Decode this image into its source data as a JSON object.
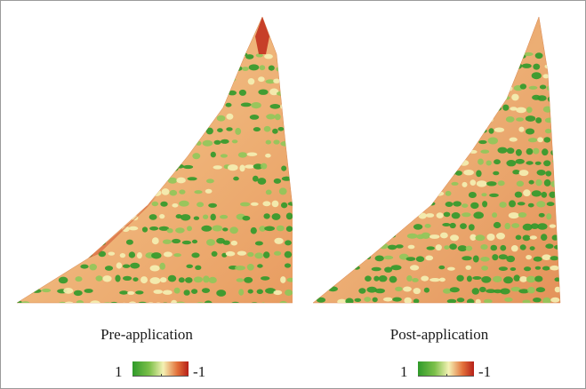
{
  "panels": [
    {
      "label": "Pre-application",
      "legend": {
        "high_label": "1",
        "low_label": "-1"
      }
    },
    {
      "label": "Post-application",
      "legend": {
        "high_label": "1",
        "low_label": "-1"
      }
    }
  ],
  "colors": {
    "healthy": "#2f9a2a",
    "neutral": "#f4f1b4",
    "stressed": "#e3713a",
    "severe": "#b61f18",
    "border": "#9a9a9a"
  }
}
